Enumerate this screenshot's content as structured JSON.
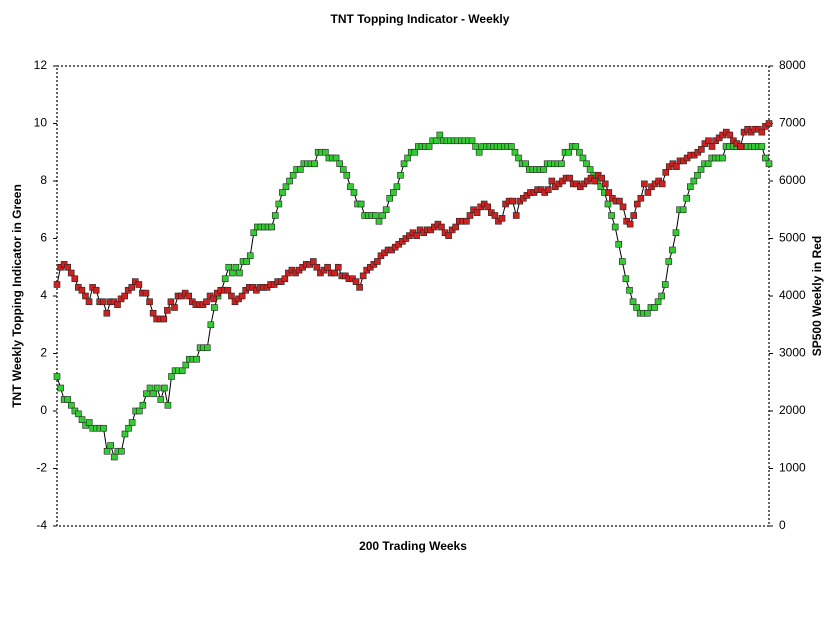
{
  "chart_data": {
    "type": "line",
    "title": "TNT Topping Indicator - Weekly",
    "x_label": "200 Trading Weeks",
    "y_label": "TNT Weekly Topping Indicator in Green",
    "y2_label": "SP500 Weekly in Red",
    "ylim": [
      -4,
      12
    ],
    "yticks": [
      -4,
      -2,
      0,
      2,
      4,
      6,
      8,
      10,
      12
    ],
    "y2lim": [
      0,
      8000
    ],
    "y2ticks": [
      0,
      1000,
      2000,
      3000,
      4000,
      5000,
      6000,
      7000,
      8000
    ],
    "series": [
      {
        "color": "#33cc33",
        "values": [
          1.2,
          0.8,
          0.4,
          0.4,
          0.2,
          0,
          -0.1,
          -0.3,
          -0.5,
          -0.4,
          -0.6,
          -0.6,
          -0.6,
          -0.6,
          -1.4,
          -1.2,
          -1.6,
          -1.4,
          -1.4,
          -0.8,
          -0.6,
          -0.4,
          0,
          0,
          0.2,
          0.6,
          0.8,
          0.6,
          0.8,
          0.4,
          0.8,
          0.2,
          1.2,
          1.4,
          1.4,
          1.4,
          1.6,
          1.8,
          1.8,
          1.8,
          2.2,
          2.2,
          2.2,
          3.0,
          3.6,
          4.0,
          4.2,
          4.6,
          5.0,
          4.8,
          5.0,
          4.8,
          5.2,
          5.2,
          5.4,
          6.2,
          6.4,
          6.4,
          6.4,
          6.4,
          6.4,
          6.8,
          7.2,
          7.6,
          7.8,
          8.0,
          8.2,
          8.4,
          8.4,
          8.6,
          8.6,
          8.6,
          8.6,
          9.0,
          9.0,
          9.0,
          8.8,
          8.8,
          8.8,
          8.6,
          8.4,
          8.2,
          7.8,
          7.6,
          7.2,
          7.2,
          6.8,
          6.8,
          6.8,
          6.8,
          6.6,
          6.8,
          7.0,
          7.4,
          7.6,
          7.8,
          8.2,
          8.6,
          8.8,
          9.0,
          9.0,
          9.2,
          9.2,
          9.2,
          9.2,
          9.4,
          9.4,
          9.6,
          9.4,
          9.4,
          9.4,
          9.4,
          9.4,
          9.4,
          9.4,
          9.4,
          9.4,
          9.2,
          9.0,
          9.2,
          9.2,
          9.2,
          9.2,
          9.2,
          9.2,
          9.2,
          9.2,
          9.2,
          9.0,
          8.8,
          8.6,
          8.6,
          8.4,
          8.4,
          8.4,
          8.4,
          8.4,
          8.6,
          8.6,
          8.6,
          8.6,
          8.6,
          9.0,
          9.0,
          9.2,
          9.2,
          9.0,
          8.8,
          8.6,
          8.4,
          8.2,
          8.0,
          7.8,
          7.6,
          7.2,
          6.8,
          6.4,
          5.8,
          5.2,
          4.6,
          4.2,
          3.8,
          3.6,
          3.4,
          3.4,
          3.4,
          3.6,
          3.6,
          3.8,
          4.0,
          4.4,
          5.2,
          5.6,
          6.2,
          7.0,
          7.0,
          7.4,
          7.8,
          8.0,
          8.2,
          8.4,
          8.6,
          8.6,
          8.8,
          8.8,
          8.8,
          8.8,
          9.2,
          9.2,
          9.2,
          9.2,
          9.2,
          9.2,
          9.2,
          9.2,
          9.2,
          9.2,
          9.2,
          8.8,
          8.6
        ]
      },
      {
        "color": "#cc2222",
        "axis": "y2",
        "values": [
          4200,
          4500,
          4550,
          4500,
          4400,
          4300,
          4150,
          4100,
          4000,
          3900,
          4150,
          4100,
          3900,
          3900,
          3700,
          3900,
          3900,
          3850,
          3950,
          4000,
          4100,
          4150,
          4250,
          4200,
          4050,
          4050,
          3900,
          3700,
          3600,
          3600,
          3600,
          3750,
          3900,
          3800,
          4000,
          4000,
          4050,
          4000,
          3900,
          3850,
          3850,
          3850,
          3900,
          4000,
          3950,
          4050,
          4100,
          4100,
          4100,
          4000,
          3900,
          3950,
          4000,
          4100,
          4150,
          4150,
          4100,
          4150,
          4150,
          4150,
          4200,
          4200,
          4250,
          4250,
          4300,
          4400,
          4450,
          4400,
          4450,
          4500,
          4550,
          4550,
          4600,
          4500,
          4400,
          4450,
          4500,
          4400,
          4400,
          4500,
          4350,
          4350,
          4300,
          4300,
          4250,
          4150,
          4350,
          4450,
          4500,
          4550,
          4600,
          4700,
          4750,
          4800,
          4800,
          4850,
          4900,
          4950,
          5000,
          5050,
          5100,
          5050,
          5150,
          5100,
          5150,
          5150,
          5200,
          5250,
          5200,
          5100,
          5050,
          5150,
          5200,
          5300,
          5300,
          5300,
          5400,
          5500,
          5450,
          5550,
          5600,
          5550,
          5450,
          5400,
          5300,
          5350,
          5600,
          5650,
          5650,
          5400,
          5650,
          5700,
          5750,
          5800,
          5800,
          5850,
          5850,
          5800,
          5850,
          6000,
          5900,
          5950,
          6000,
          6050,
          6050,
          5950,
          5950,
          5900,
          5950,
          6000,
          6050,
          6000,
          6100,
          6050,
          5950,
          5800,
          5700,
          5650,
          5650,
          5550,
          5300,
          5250,
          5400,
          5600,
          5700,
          5950,
          5800,
          5900,
          5950,
          6000,
          5950,
          6150,
          6250,
          6300,
          6250,
          6350,
          6350,
          6400,
          6450,
          6450,
          6500,
          6550,
          6650,
          6700,
          6600,
          6700,
          6750,
          6800,
          6850,
          6800,
          6700,
          6650,
          6600,
          6850,
          6900,
          6850,
          6900,
          6900,
          6850,
          6950,
          7000
        ]
      }
    ]
  }
}
